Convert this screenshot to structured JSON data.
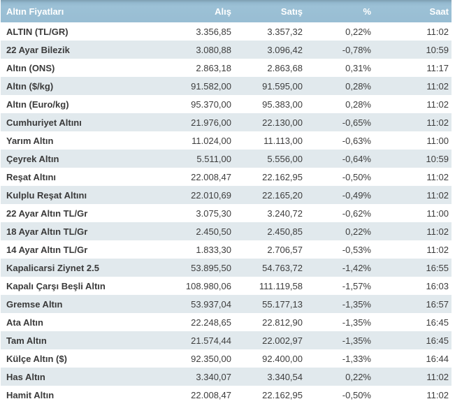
{
  "table": {
    "title": "Altın Fiyatları",
    "columns": [
      "Alış",
      "Satış",
      "%",
      "Saat"
    ],
    "rows": [
      {
        "name": "ALTIN (TL/GR)",
        "alis": "3.356,85",
        "satis": "3.357,32",
        "pct": "0,22%",
        "saat": "11:02"
      },
      {
        "name": "22 Ayar Bilezik",
        "alis": "3.080,88",
        "satis": "3.096,42",
        "pct": "-0,78%",
        "saat": "10:59"
      },
      {
        "name": "Altın (ONS)",
        "alis": "2.863,18",
        "satis": "2.863,68",
        "pct": "0,31%",
        "saat": "11:17"
      },
      {
        "name": "Altın ($/kg)",
        "alis": "91.582,00",
        "satis": "91.595,00",
        "pct": "0,28%",
        "saat": "11:02"
      },
      {
        "name": "Altın (Euro/kg)",
        "alis": "95.370,00",
        "satis": "95.383,00",
        "pct": "0,28%",
        "saat": "11:02"
      },
      {
        "name": "Cumhuriyet Altını",
        "alis": "21.976,00",
        "satis": "22.130,00",
        "pct": "-0,65%",
        "saat": "11:02"
      },
      {
        "name": "Yarım Altın",
        "alis": "11.024,00",
        "satis": "11.113,00",
        "pct": "-0,63%",
        "saat": "11:00"
      },
      {
        "name": "Çeyrek Altın",
        "alis": "5.511,00",
        "satis": "5.556,00",
        "pct": "-0,64%",
        "saat": "10:59"
      },
      {
        "name": "Reşat Altını",
        "alis": "22.008,47",
        "satis": "22.162,95",
        "pct": "-0,50%",
        "saat": "11:02"
      },
      {
        "name": "Kulplu Reşat Altını",
        "alis": "22.010,69",
        "satis": "22.165,20",
        "pct": "-0,49%",
        "saat": "11:02"
      },
      {
        "name": "22 Ayar Altın TL/Gr",
        "alis": "3.075,30",
        "satis": "3.240,72",
        "pct": "-0,62%",
        "saat": "11:00"
      },
      {
        "name": "18 Ayar Altın TL/Gr",
        "alis": "2.450,50",
        "satis": "2.450,85",
        "pct": "0,22%",
        "saat": "11:02"
      },
      {
        "name": "14 Ayar Altın TL/Gr",
        "alis": "1.833,30",
        "satis": "2.706,57",
        "pct": "-0,53%",
        "saat": "11:02"
      },
      {
        "name": "Kapalicarsi Ziynet 2.5",
        "alis": "53.895,50",
        "satis": "54.763,72",
        "pct": "-1,42%",
        "saat": "16:55"
      },
      {
        "name": "Kapalı Çarşı Beşli Altın",
        "alis": "108.980,06",
        "satis": "111.119,58",
        "pct": "-1,57%",
        "saat": "16:03"
      },
      {
        "name": "Gremse Altın",
        "alis": "53.937,04",
        "satis": "55.177,13",
        "pct": "-1,35%",
        "saat": "16:57"
      },
      {
        "name": "Ata Altın",
        "alis": "22.248,65",
        "satis": "22.812,90",
        "pct": "-1,35%",
        "saat": "16:45"
      },
      {
        "name": "Tam Altın",
        "alis": "21.574,44",
        "satis": "22.002,97",
        "pct": "-1,35%",
        "saat": "16:45"
      },
      {
        "name": "Külçe Altın ($)",
        "alis": "92.350,00",
        "satis": "92.400,00",
        "pct": "-1,33%",
        "saat": "16:44"
      },
      {
        "name": "Has Altın",
        "alis": "3.340,07",
        "satis": "3.340,54",
        "pct": "0,22%",
        "saat": "11:02"
      },
      {
        "name": "Hamit Altın",
        "alis": "22.008,47",
        "satis": "22.162,95",
        "pct": "-0,50%",
        "saat": "11:02"
      }
    ]
  },
  "colors": {
    "header_bg": "#99bed3",
    "header_bg_top_edge": "#7d9eb1",
    "header_text": "#ffffff",
    "row_bg": "#ffffff",
    "row_alt_bg": "#e1e9ed",
    "text": "#3d3d3d"
  }
}
